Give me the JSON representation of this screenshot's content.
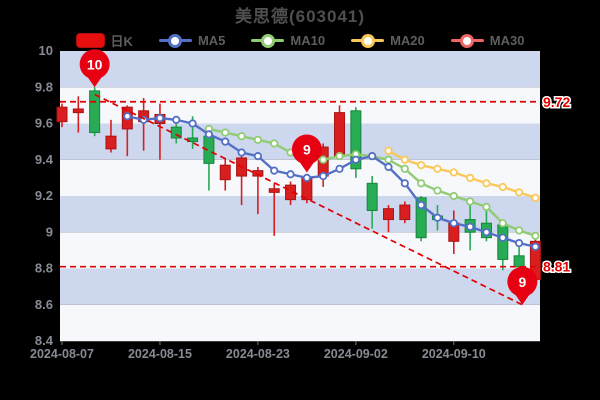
{
  "title": "美思德(603041)",
  "legend": {
    "items": [
      {
        "label": "日K",
        "type": "kline",
        "color": "#e60f0f"
      },
      {
        "label": "MA5",
        "type": "ma",
        "color": "#5470c6"
      },
      {
        "label": "MA10",
        "type": "ma",
        "color": "#91cc75"
      },
      {
        "label": "MA20",
        "type": "ma",
        "color": "#fac858"
      },
      {
        "label": "MA30",
        "type": "ma",
        "color": "#ee6666"
      }
    ]
  },
  "colors": {
    "background": "#000000",
    "title_text": "#4f4f4f",
    "axis_text": "#868b94",
    "stripe_blue": "#cdd7ee",
    "stripe_white": "#f7f8fb",
    "candle_up": "#d81e1e",
    "candle_up_border": "#a81414",
    "candle_down": "#27ab54",
    "candle_down_border": "#17863c",
    "ma5": "#5470c6",
    "ma10": "#91cc75",
    "ma20": "#fac858",
    "ma30": "#ee6666",
    "annotation_red": "#e00000",
    "pin_red": "#e60012",
    "price_tag_text": "#e60000"
  },
  "chart_data": {
    "type": "candlestick",
    "title": "美思德(603041)",
    "y_axis": {
      "min": 8.4,
      "max": 10,
      "tick_step": 0.2,
      "tick_labels": [
        "10",
        "9.8",
        "9.6",
        "9.4",
        "9.2",
        "9",
        "8.8",
        "8.6",
        "8.4"
      ]
    },
    "x_axis": {
      "ticks": [
        {
          "index": 0,
          "label": "2024-08-07"
        },
        {
          "index": 6,
          "label": "2024-08-15"
        },
        {
          "index": 12,
          "label": "2024-08-23"
        },
        {
          "index": 18,
          "label": "2024-09-02"
        },
        {
          "index": 24,
          "label": "2024-09-10"
        }
      ]
    },
    "candles_ochl_note": "each candle = [open, close, high, low]; close>=open renders red (up), else green (down)",
    "candles": [
      [
        9.61,
        9.69,
        9.71,
        9.58
      ],
      [
        9.66,
        9.68,
        9.75,
        9.55
      ],
      [
        9.78,
        9.55,
        9.8,
        9.53
      ],
      [
        9.46,
        9.53,
        9.62,
        9.44
      ],
      [
        9.57,
        9.69,
        9.7,
        9.42
      ],
      [
        9.61,
        9.67,
        9.74,
        9.45
      ],
      [
        9.6,
        9.65,
        9.71,
        9.4
      ],
      [
        9.58,
        9.52,
        9.64,
        9.49
      ],
      [
        9.52,
        9.5,
        9.64,
        9.46
      ],
      [
        9.53,
        9.38,
        9.59,
        9.23
      ],
      [
        9.29,
        9.37,
        9.41,
        9.23
      ],
      [
        9.31,
        9.41,
        9.43,
        9.15
      ],
      [
        9.31,
        9.34,
        9.36,
        9.1
      ],
      [
        9.22,
        9.24,
        9.27,
        8.98
      ],
      [
        9.18,
        9.26,
        9.28,
        9.15
      ],
      [
        9.18,
        9.3,
        9.32,
        9.16
      ],
      [
        9.31,
        9.47,
        9.49,
        9.25
      ],
      [
        9.42,
        9.66,
        9.7,
        9.4
      ],
      [
        9.67,
        9.35,
        9.69,
        9.3
      ],
      [
        9.27,
        9.12,
        9.31,
        9.02
      ],
      [
        9.07,
        9.13,
        9.15,
        9.0
      ],
      [
        9.07,
        9.15,
        9.17,
        9.05
      ],
      [
        9.19,
        8.97,
        9.2,
        8.95
      ],
      [
        9.09,
        9.07,
        9.15,
        9.01
      ],
      [
        8.95,
        9.05,
        9.12,
        8.88
      ],
      [
        9.07,
        9.0,
        9.15,
        8.9
      ],
      [
        9.05,
        8.97,
        9.13,
        8.95
      ],
      [
        9.04,
        8.85,
        9.06,
        8.79
      ],
      [
        8.87,
        8.81,
        8.92,
        8.79
      ],
      [
        8.74,
        8.95,
        8.97,
        8.73
      ]
    ],
    "series": [
      {
        "name": "MA5",
        "start_index": 4,
        "values": [
          9.64,
          9.62,
          9.63,
          9.62,
          9.6,
          9.54,
          9.5,
          9.44,
          9.42,
          9.34,
          9.32,
          9.3,
          9.31,
          9.35,
          9.4,
          9.42,
          9.36,
          9.27,
          9.15,
          9.08,
          9.05,
          9.03,
          9.0,
          8.97,
          8.94,
          8.92
        ]
      },
      {
        "name": "MA10",
        "start_index": 9,
        "values": [
          9.57,
          9.55,
          9.53,
          9.51,
          9.49,
          9.44,
          9.42,
          9.4,
          9.42,
          9.43,
          9.42,
          9.4,
          9.35,
          9.27,
          9.23,
          9.2,
          9.17,
          9.14,
          9.05,
          9.01,
          8.98
        ]
      },
      {
        "name": "MA20",
        "start_index": 20,
        "values": [
          9.45,
          9.4,
          9.37,
          9.35,
          9.33,
          9.3,
          9.27,
          9.25,
          9.22,
          9.19
        ]
      },
      {
        "name": "MA30",
        "start_index": 29,
        "values": []
      }
    ],
    "annotations": {
      "hlines": [
        {
          "price": 9.72,
          "label": "9.72"
        },
        {
          "price": 8.81,
          "label": "8.81"
        }
      ],
      "trendline": {
        "from_index": 2,
        "from_price": 9.76,
        "to_index": 28.2,
        "to_price": 8.6
      },
      "pins": [
        {
          "label": "10",
          "x_index": 2,
          "tip_price": 9.8
        },
        {
          "label": "9",
          "x_index": 15,
          "tip_price": 9.33
        },
        {
          "label": "9",
          "x_index": 28.2,
          "tip_price": 8.6
        }
      ]
    }
  }
}
